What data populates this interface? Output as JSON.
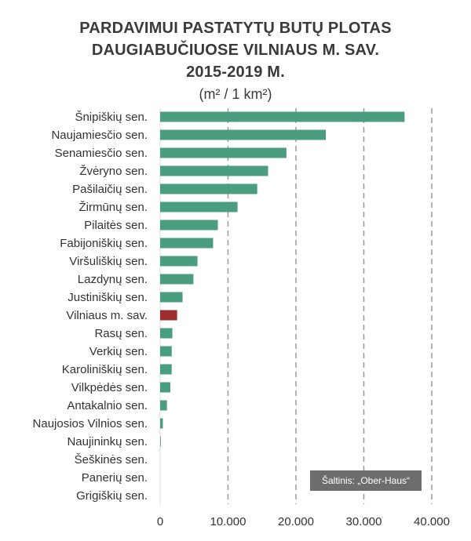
{
  "title": {
    "line1": "PARDAVIMUI PASTATYTŲ BUTŲ PLOTAS",
    "line2": "DAUGIABUČIUOSE VILNIAUS M. SAV.",
    "line3": "2015-2019 M.",
    "unit": "(m² / 1 km²)"
  },
  "source": "Šaltinis: „Ober-Haus“",
  "colors": {
    "bar": "#4a9e7f",
    "highlight": "#9b2f2f",
    "grid": "#9a9a9a",
    "text": "#333333"
  },
  "chart_data": {
    "type": "bar",
    "orientation": "horizontal",
    "categories": [
      "Šnipiškių sen.",
      "Naujamiesčio sen.",
      "Senamiesčio sen.",
      "Žvėryno sen.",
      "Pašilaičių sen.",
      "Žirmūnų sen.",
      "Pilaitės sen.",
      "Fabijoniškių sen.",
      "Viršuliškių sen.",
      "Lazdynų sen.",
      "Justiniškių sen.",
      "Vilniaus m. sav.",
      "Rasų sen.",
      "Verkių sen.",
      "Karoliniškių sen.",
      "Vilkpėdės sen.",
      "Antakalnio sen.",
      "Naujosios Vilnios sen.",
      "Naujininkų sen.",
      "Šeškinės sen.",
      "Panerių sen.",
      "Grigiškių sen."
    ],
    "values": [
      36000,
      24400,
      18600,
      15900,
      14300,
      11400,
      8500,
      7800,
      5500,
      4900,
      3300,
      2500,
      1800,
      1700,
      1700,
      1500,
      1000,
      400,
      100,
      0,
      0,
      0
    ],
    "highlight_category": "Vilniaus m. sav.",
    "xlim": [
      0,
      40000
    ],
    "x_ticks": [
      0,
      10000,
      20000,
      30000,
      40000
    ],
    "x_tick_labels": [
      "0",
      "10.000",
      "20.000",
      "30.000",
      "40.000"
    ],
    "grid": "vertical dashed"
  }
}
